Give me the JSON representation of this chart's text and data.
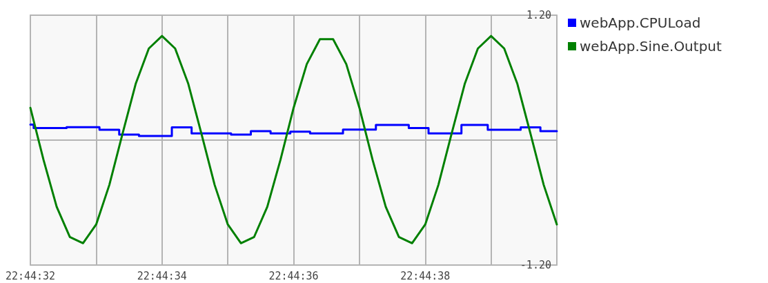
{
  "chart_data": {
    "type": "line",
    "series": [
      {
        "name": "webApp.CPULoad",
        "type": "step",
        "color": "#0000ff",
        "x": [
          22.7422222,
          22.7422361,
          22.742375,
          22.7425139,
          22.7425972,
          22.7426806,
          22.7428194,
          22.7429028,
          22.7430694,
          22.7431528,
          22.7432361,
          22.7433194,
          22.7434028,
          22.7435417,
          22.7436806,
          22.7438194,
          22.7439028,
          22.7440417,
          22.7441528,
          22.7442917,
          22.744375,
          22.7444444
        ],
        "values": [
          0.15,
          0.116,
          0.124,
          0.099,
          0.053,
          0.039,
          0.123,
          0.065,
          0.053,
          0.086,
          0.065,
          0.082,
          0.065,
          0.101,
          0.146,
          0.116,
          0.065,
          0.146,
          0.099,
          0.123,
          0.086,
          0.086
        ]
      },
      {
        "name": "webApp.Sine.Output",
        "color": "#008000",
        "x": [
          22.7422222,
          22.7422778,
          22.7423333,
          22.7423889,
          22.7424444,
          22.7425,
          22.7425556,
          22.7426111,
          22.7426667,
          22.7427222,
          22.7427778,
          22.7428333,
          22.7428889,
          22.7429444,
          22.743,
          22.7430556,
          22.7431111,
          22.7431667,
          22.7432222,
          22.7432778,
          22.7433333,
          22.7433889,
          22.7434444,
          22.7435,
          22.7435556,
          22.7436111,
          22.7436667,
          22.7437222,
          22.7437778,
          22.7438333,
          22.7438889,
          22.7439444,
          22.744,
          22.7440556,
          22.7441111,
          22.7441667,
          22.7442222,
          22.7442778,
          22.7443333,
          22.7443889,
          22.7444444
        ],
        "values": [
          0.31,
          -0.19,
          -0.64,
          -0.93,
          -0.99,
          -0.81,
          -0.43,
          0.06,
          0.54,
          0.88,
          1,
          0.88,
          0.54,
          0.06,
          -0.43,
          -0.81,
          -0.99,
          -0.93,
          -0.64,
          -0.19,
          0.31,
          0.73,
          0.97,
          0.97,
          0.73,
          0.31,
          -0.19,
          -0.64,
          -0.93,
          -0.99,
          -0.81,
          -0.43,
          0.06,
          0.54,
          0.88,
          1,
          0.88,
          0.54,
          0.06,
          -0.43,
          -0.81
        ]
      }
    ],
    "xlim": [
      22.7422222,
      22.7444444
    ],
    "xticks": [
      {
        "value": 22.7422222,
        "label": "22:44:32"
      },
      {
        "value": 22.7425,
        "label": null
      },
      {
        "value": 22.7427778,
        "label": "22:44:34"
      },
      {
        "value": 22.7430556,
        "label": null
      },
      {
        "value": 22.7433333,
        "label": "22:44:36"
      },
      {
        "value": 22.7436111,
        "label": null
      },
      {
        "value": 22.7438889,
        "label": "22:44:38"
      },
      {
        "value": 22.7441667,
        "label": null
      },
      {
        "value": 22.7444444,
        "label": null
      }
    ],
    "ylim": [
      -1.2,
      1.2
    ],
    "yticks": [
      {
        "value": -1.2,
        "label": "-1.20"
      },
      {
        "value": 0,
        "label": null
      },
      {
        "value": 1.2,
        "label": "1.20"
      }
    ],
    "grid": true,
    "legend": "top right",
    "marker": "none",
    "line_style": "solid"
  }
}
